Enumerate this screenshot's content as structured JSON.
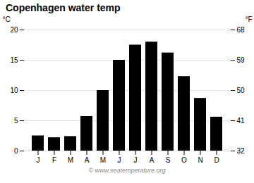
{
  "chart_data": {
    "type": "bar",
    "title": "Copenhagen water temp",
    "categories": [
      "J",
      "F",
      "M",
      "A",
      "M",
      "J",
      "J",
      "A",
      "S",
      "O",
      "N",
      "D"
    ],
    "values": [
      2.5,
      2.2,
      2.4,
      5.7,
      10.0,
      15.0,
      17.5,
      18.0,
      16.2,
      12.3,
      8.7,
      5.6
    ],
    "ylim": [
      0,
      20
    ],
    "yticks": [
      0,
      5,
      10,
      15,
      20
    ],
    "ylabel": "°C",
    "y2lim": [
      32,
      68
    ],
    "y2ticks": [
      32,
      41,
      50,
      59,
      68
    ],
    "y2label": "°F",
    "grid": true,
    "annotations": [
      "© www.seatemperature.org"
    ]
  }
}
